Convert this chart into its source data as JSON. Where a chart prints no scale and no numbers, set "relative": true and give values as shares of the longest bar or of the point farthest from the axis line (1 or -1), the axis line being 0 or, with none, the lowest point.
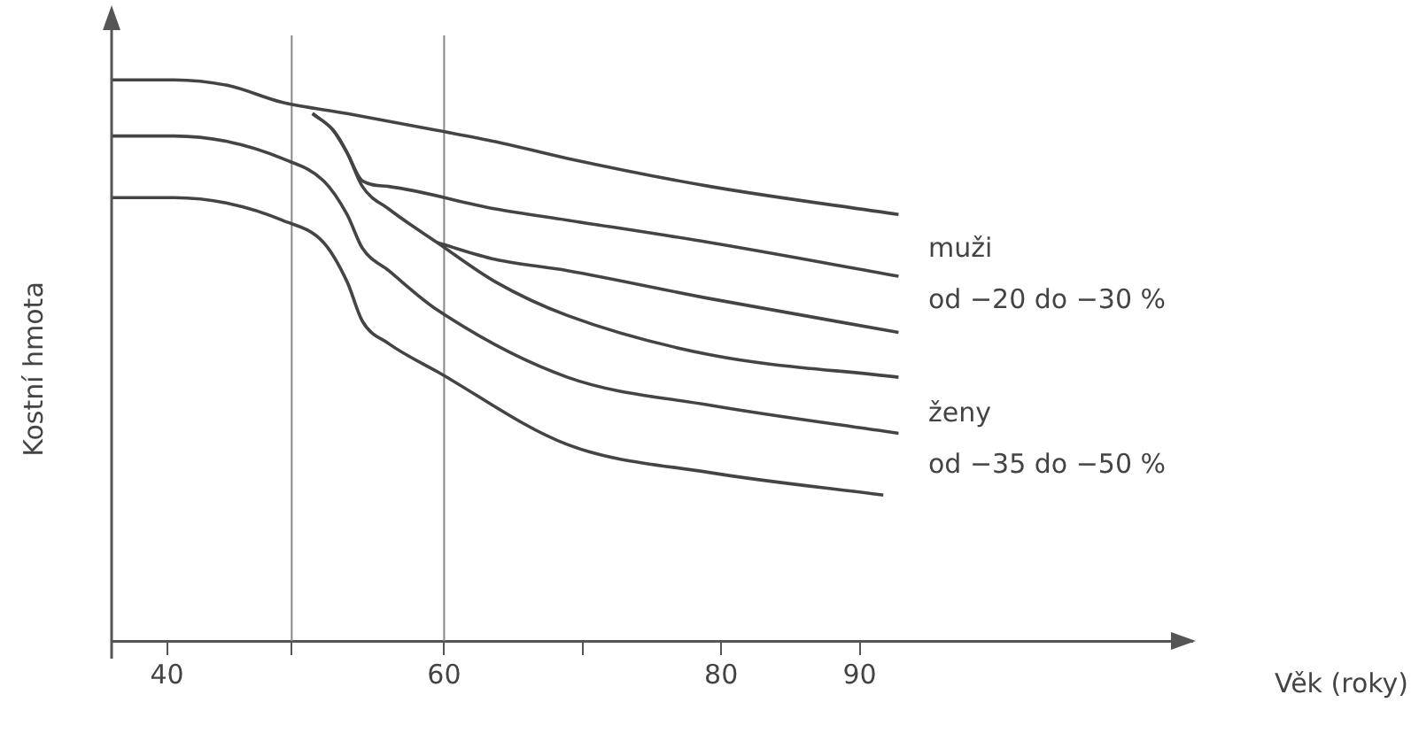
{
  "chart_data": {
    "type": "line",
    "xlabel": "Věk (roky)",
    "ylabel": "Kostní hmota",
    "relative": true,
    "xlim": [
      36,
      114
    ],
    "xticks": [
      40,
      {
        "value": 49,
        "label": null
      },
      60,
      {
        "value": 70,
        "label": null
      },
      80,
      90
    ],
    "ref_lines": [
      {
        "axis": "x",
        "value": 49,
        "color": "#888888"
      },
      {
        "axis": "x",
        "value": 60,
        "color": "#888888"
      }
    ],
    "annotations": [
      "muži",
      "od −20 do −30 %",
      "ženy",
      "od −35 do −50 %"
    ],
    "series": [
      {
        "color": "#444444",
        "x": [
          36,
          40.5,
          44.4,
          48.3,
          53,
          59.5,
          63.7,
          68.9,
          79.2,
          92.8
        ],
        "values": [
          1.0,
          1.0,
          0.99,
          0.96,
          0.94,
          0.91,
          0.89,
          0.86,
          0.81,
          0.76
        ]
      },
      {
        "color": "#444444",
        "x": [
          50.5,
          52,
          53,
          54.1,
          56,
          63.7,
          68.9,
          79.2,
          92.8
        ],
        "values": [
          0.94,
          0.91,
          0.87,
          0.82,
          0.81,
          0.77,
          0.75,
          0.71,
          0.65
        ]
      },
      {
        "color": "#444444",
        "x": [
          59.5,
          63.7,
          68.9,
          79.2,
          92.8
        ],
        "values": [
          0.71,
          0.68,
          0.66,
          0.61,
          0.55
        ]
      },
      {
        "color": "#444444",
        "x": [
          50.5,
          52,
          53,
          54.1,
          56,
          59.5,
          63.7,
          68.9,
          79.2,
          92.8
        ],
        "values": [
          0.94,
          0.91,
          0.87,
          0.81,
          0.77,
          0.71,
          0.64,
          0.58,
          0.51,
          0.47
        ]
      },
      {
        "color": "#444444",
        "x": [
          36,
          40.5,
          44.4,
          48.3,
          51.3,
          53,
          54.1,
          56,
          59.5,
          68.9,
          79.2,
          92.8
        ],
        "values": [
          0.9,
          0.9,
          0.89,
          0.86,
          0.82,
          0.76,
          0.7,
          0.66,
          0.59,
          0.47,
          0.42,
          0.37
        ]
      },
      {
        "color": "#444444",
        "x": [
          36,
          40.5,
          44.4,
          48.3,
          51.3,
          53,
          54.1,
          56,
          59.5,
          68.9,
          79.2,
          91.7
        ],
        "values": [
          0.79,
          0.79,
          0.78,
          0.75,
          0.71,
          0.64,
          0.57,
          0.53,
          0.48,
          0.35,
          0.3,
          0.26
        ]
      }
    ]
  }
}
